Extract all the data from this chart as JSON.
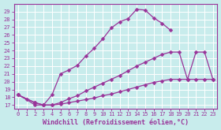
{
  "background_color": "#c8ecec",
  "grid_color": "#ffffff",
  "line_color": "#993399",
  "xlabel": "Windchill (Refroidissement éolien,°C)",
  "xlim": [
    -0.5,
    23.5
  ],
  "ylim": [
    16.5,
    30.0
  ],
  "yticks": [
    17,
    18,
    19,
    20,
    21,
    22,
    23,
    24,
    25,
    26,
    27,
    28,
    29
  ],
  "xticks": [
    0,
    1,
    2,
    3,
    4,
    5,
    6,
    7,
    8,
    9,
    10,
    11,
    12,
    13,
    14,
    15,
    16,
    17,
    18,
    19,
    20,
    21,
    22,
    23
  ],
  "curve1_x": [
    0,
    1,
    2,
    3,
    4,
    5,
    6,
    7,
    8,
    9,
    10,
    11,
    12,
    13,
    14,
    15,
    16,
    17,
    18
  ],
  "curve1_y": [
    18.3,
    17.7,
    17.0,
    17.0,
    18.3,
    21.0,
    21.5,
    22.1,
    23.3,
    24.3,
    25.5,
    26.9,
    27.7,
    28.1,
    29.3,
    29.2,
    28.2,
    27.5,
    26.6
  ],
  "curve2_x": [
    0,
    2,
    3,
    4,
    5,
    6,
    7,
    8,
    9,
    10,
    11,
    12,
    13,
    14,
    15,
    16,
    17,
    18,
    19,
    20,
    21,
    22,
    23
  ],
  "curve2_y": [
    18.3,
    17.3,
    17.0,
    17.0,
    17.3,
    17.8,
    18.2,
    18.8,
    19.3,
    19.8,
    20.3,
    20.8,
    21.4,
    22.0,
    22.5,
    23.0,
    23.5,
    23.8,
    23.8,
    20.3,
    23.8,
    23.8,
    20.3
  ],
  "curve3_x": [
    0,
    2,
    3,
    4,
    5,
    6,
    7,
    8,
    9,
    10,
    11,
    12,
    13,
    14,
    15,
    16,
    17,
    18,
    19,
    20,
    21,
    22,
    23
  ],
  "curve3_y": [
    18.3,
    17.3,
    17.0,
    17.0,
    17.1,
    17.3,
    17.5,
    17.7,
    17.9,
    18.2,
    18.4,
    18.7,
    19.0,
    19.3,
    19.6,
    19.9,
    20.1,
    20.3,
    20.3,
    20.3,
    20.3,
    20.3,
    20.3
  ],
  "marker": "D",
  "markersize": 2.5,
  "linewidth": 0.9,
  "tick_fontsize": 5,
  "label_fontsize": 6,
  "spine_linewidth": 0.8
}
